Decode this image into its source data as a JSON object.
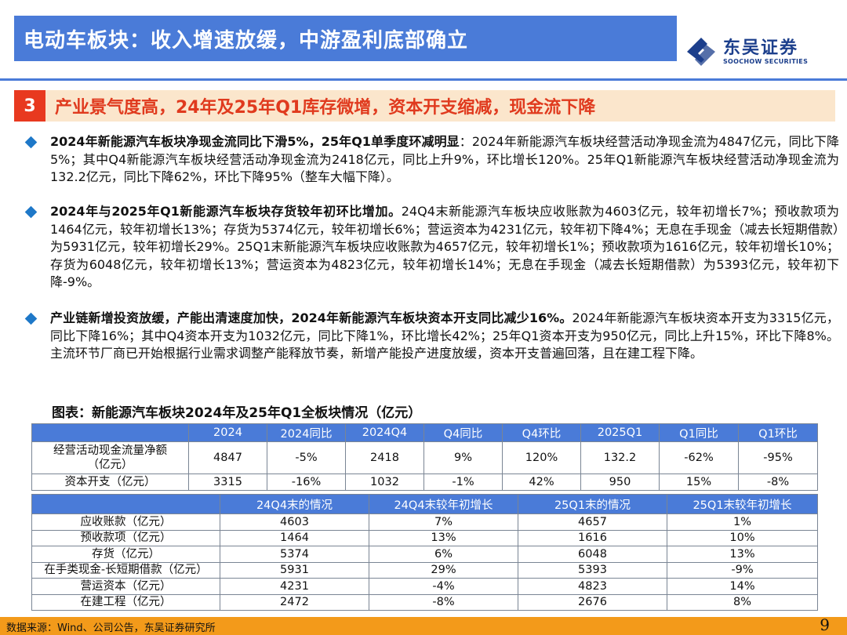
{
  "header": {
    "title": "电动车板块：收入增速放缓，中游盈利底部确立",
    "logo_cn": "东吴证券",
    "logo_en": "SOOCHOW SECURITIES"
  },
  "section": {
    "number": "3",
    "title": "产业景气度高，24年及25年Q1库存微增，资本开支缩减，现金流下降"
  },
  "bullets": [
    {
      "bold": "2024年新能源汽车板块净现金流同比下滑5%，25年Q1单季度环减明显",
      "text": "：2024年新能源汽车板块经营活动净现金流为4847亿元，同比下降5%；其中Q4新能源汽车板块经营活动净现金流为2418亿元，同比上升9%，环比增长120%。25年Q1新能源汽车板块经营活动净现金流为132.2亿元，同比下降62%，环比下降95%（整车大幅下降）。"
    },
    {
      "bold": "2024年与2025年Q1新能源汽车板块存货较年初环比增加。",
      "text": "24Q4末新能源汽车板块应收账款为4603亿元，较年初增长7%；预收款项为1464亿元，较年初增长13%；存货为5374亿元，较年初增长6%；营运资本为4231亿元，较年初下降4%；无息在手现金（减去长短期借款）为5931亿元，较年初增长29%。25Q1末新能源汽车板块应收账款为4657亿元，较年初增长1%；预收款项为1616亿元，较年初增长10%；存货为6048亿元，较年初增长13%；营运资本为4823亿元，较年初增长14%；无息在手现金（减去长短期借款）为5393亿元，较年初下降-9%。"
    },
    {
      "bold": "产业链新增投资放缓，产能出清速度加快，2024年新能源汽车板块资本开支同比减少16%。",
      "text": "2024年新能源汽车板块资本开支为3315亿元，同比下降16%；其中Q4资本开支为1032亿元，同比下降1%，环比增长42%；25年Q1资本开支为950亿元，同比上升15%，环比下降8%。主流环节厂商已开始根据行业需求调整产能释放节奏，新增产能投产进度放缓，资本开支普遍回落，且在建工程下降。"
    }
  ],
  "figure_title": "图表：新能源汽车板块2024年及25年Q1全板块情况（亿元）",
  "table1": {
    "headers": [
      "",
      "2024",
      "2024同比",
      "2024Q4",
      "Q4同比",
      "Q4环比",
      "2025Q1",
      "Q1同比",
      "Q1环比"
    ],
    "rows": [
      [
        "经营活动现金流量净额（亿元）",
        "4847",
        "-5%",
        "2418",
        "9%",
        "120%",
        "132.2",
        "-62%",
        "-95%"
      ],
      [
        "资本开支（亿元）",
        "3315",
        "-16%",
        "1032",
        "-1%",
        "42%",
        "950",
        "15%",
        "-8%"
      ]
    ]
  },
  "table2": {
    "headers": [
      "",
      "24Q4末的情况",
      "24Q4末较年初增长",
      "25Q1末的情况",
      "25Q1末较年初增长"
    ],
    "rows": [
      [
        "应收账款（亿元）",
        "4603",
        "7%",
        "4657",
        "1%"
      ],
      [
        "预收款项（亿元）",
        "1464",
        "13%",
        "1616",
        "10%"
      ],
      [
        "存货（亿元）",
        "5374",
        "6%",
        "6048",
        "13%"
      ],
      [
        "在手类现金-长短期借款（亿元）",
        "5931",
        "29%",
        "5393",
        "-9%"
      ],
      [
        "营运资本（亿元）",
        "4231",
        "-4%",
        "4823",
        "14%"
      ],
      [
        "在建工程（亿元）",
        "2472",
        "-8%",
        "2676",
        "8%"
      ]
    ]
  },
  "footer": {
    "source": "数据来源：Wind、公司公告，东吴证券研究所",
    "page": "9"
  },
  "colors": {
    "title_bar": "#4a7bd8",
    "section_bg": "#fbe6cc",
    "section_num": "#e8391f",
    "section_title": "#e03a1e",
    "bullet": "#1e78c8",
    "footer": "#f39a1a"
  }
}
